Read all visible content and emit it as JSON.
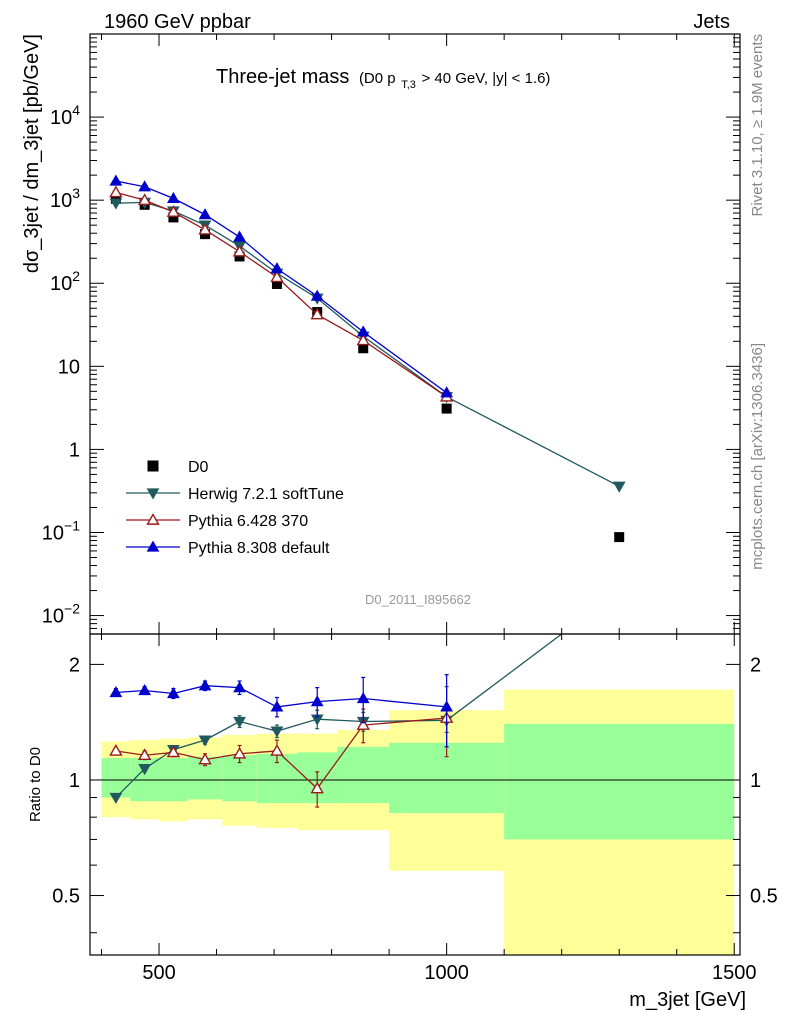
{
  "header": {
    "left": "1960 GeV ppbar",
    "right": "Jets"
  },
  "side_labels": {
    "rivet": "Rivet 3.1.10, ≥ 1.9M events",
    "source": "mcplots.cern.ch [arXiv:1306.3436]"
  },
  "chart_data": [
    {
      "type": "line",
      "title_main": "Three-jet mass",
      "title_cut_pre": "(D0 p",
      "title_cut_sub": "T,3",
      "title_cut_post": " > 40 GeV, |y| < 1.6)",
      "watermark": "D0_2011_I895662",
      "ylabel": "dσ_3jet / dm_3jet [pb/GeV]",
      "xlim": [
        380,
        1510
      ],
      "ylim": [
        0.006,
        100000
      ],
      "yscale": "log",
      "ytick_labels": [
        {
          "value": 0.01,
          "base": "10",
          "exp": "−2"
        },
        {
          "value": 0.1,
          "base": "10",
          "exp": "−1"
        },
        {
          "value": 1,
          "base": "1",
          "exp": ""
        },
        {
          "value": 10,
          "base": "10",
          "exp": ""
        },
        {
          "value": 100,
          "base": "10",
          "exp": "2"
        },
        {
          "value": 1000,
          "base": "10",
          "exp": "3"
        },
        {
          "value": 10000,
          "base": "10",
          "exp": "4"
        }
      ],
      "legend_position": "lower-left",
      "series": [
        {
          "name": "D0",
          "color": "#000000",
          "marker": "square",
          "x": [
            425,
            475,
            525,
            580,
            640,
            705,
            775,
            855,
            1000,
            1300
          ],
          "values": [
            1040,
            880,
            620,
            390,
            210,
            98,
            45,
            16.5,
            3.1,
            0.088
          ]
        },
        {
          "name": "Herwig 7.2.1 softTune",
          "color": "#215a5e",
          "marker": "triangle-down",
          "x": [
            425,
            475,
            525,
            580,
            640,
            705,
            775,
            855,
            1000,
            1300
          ],
          "values": [
            920,
            940,
            740,
            500,
            280,
            132,
            66,
            23,
            4.3,
            0.36
          ]
        },
        {
          "name": "Pythia 6.428 370",
          "color": "#9a1b1b",
          "marker": "triangle-up-open",
          "x": [
            425,
            475,
            525,
            580,
            640,
            705,
            775,
            855,
            1000
          ],
          "values": [
            1240,
            1000,
            720,
            440,
            240,
            118,
            42,
            20.5,
            4.3
          ]
        },
        {
          "name": "Pythia 8.308 default",
          "color": "#0000cc",
          "marker": "triangle-up",
          "x": [
            425,
            475,
            525,
            580,
            640,
            705,
            775,
            855,
            1000
          ],
          "values": [
            1700,
            1450,
            1050,
            670,
            360,
            150,
            70,
            26,
            4.8
          ]
        }
      ]
    },
    {
      "type": "line",
      "ylabel": "Ratio to D0",
      "xlabel": "m_3jet [GeV]",
      "xlim": [
        380,
        1510
      ],
      "ylim": [
        0.35,
        2.4
      ],
      "yscale": "log",
      "reference_line": 1,
      "xtick_labels": [
        500,
        1000,
        1500
      ],
      "ytick_labels": [
        "0.5",
        "1",
        "2"
      ],
      "bands": {
        "bins": [
          [
            400,
            450
          ],
          [
            450,
            500
          ],
          [
            500,
            550
          ],
          [
            550,
            610
          ],
          [
            610,
            670
          ],
          [
            670,
            740
          ],
          [
            740,
            810
          ],
          [
            810,
            900
          ],
          [
            900,
            1100
          ],
          [
            1100,
            1500
          ]
        ],
        "inner_color": "#99ff99",
        "outer_color": "#ffff99",
        "inner": [
          [
            0.9,
            1.14
          ],
          [
            0.88,
            1.14
          ],
          [
            0.88,
            1.14
          ],
          [
            0.89,
            1.15
          ],
          [
            0.88,
            1.16
          ],
          [
            0.87,
            1.17
          ],
          [
            0.87,
            1.18
          ],
          [
            0.87,
            1.22
          ],
          [
            0.82,
            1.25
          ],
          [
            0.7,
            1.4
          ]
        ],
        "outer": [
          [
            0.8,
            1.26
          ],
          [
            0.79,
            1.27
          ],
          [
            0.78,
            1.28
          ],
          [
            0.79,
            1.29
          ],
          [
            0.76,
            1.31
          ],
          [
            0.75,
            1.32
          ],
          [
            0.74,
            1.32
          ],
          [
            0.74,
            1.35
          ],
          [
            0.58,
            1.52
          ],
          [
            0.32,
            1.72
          ]
        ]
      },
      "series": [
        {
          "name": "Herwig 7.2.1 softTune",
          "x": [
            425,
            475,
            525,
            580,
            640,
            705,
            775,
            855,
            1000
          ],
          "values": [
            0.9,
            1.07,
            1.2,
            1.27,
            1.42,
            1.34,
            1.44,
            1.42,
            1.43
          ],
          "errors": [
            0.01,
            0.02,
            0.02,
            0.03,
            0.05,
            0.05,
            0.08,
            0.08,
            0.1
          ],
          "extends_to": {
            "x": 1200,
            "value": 2.4
          }
        },
        {
          "name": "Pythia 6.428 370",
          "x": [
            425,
            475,
            525,
            580,
            640,
            705,
            775,
            855,
            1000
          ],
          "values": [
            1.19,
            1.16,
            1.18,
            1.13,
            1.17,
            1.19,
            0.95,
            1.39,
            1.45
          ],
          "errors": [
            0.02,
            0.03,
            0.03,
            0.04,
            0.06,
            0.08,
            0.1,
            0.14,
            0.3
          ]
        },
        {
          "name": "Pythia 8.308 default",
          "x": [
            425,
            475,
            525,
            580,
            640,
            705,
            775,
            855,
            1000
          ],
          "values": [
            1.69,
            1.71,
            1.68,
            1.76,
            1.74,
            1.55,
            1.6,
            1.63,
            1.55
          ],
          "errors": [
            0.04,
            0.04,
            0.05,
            0.05,
            0.07,
            0.09,
            0.14,
            0.22,
            0.33
          ]
        }
      ]
    }
  ]
}
